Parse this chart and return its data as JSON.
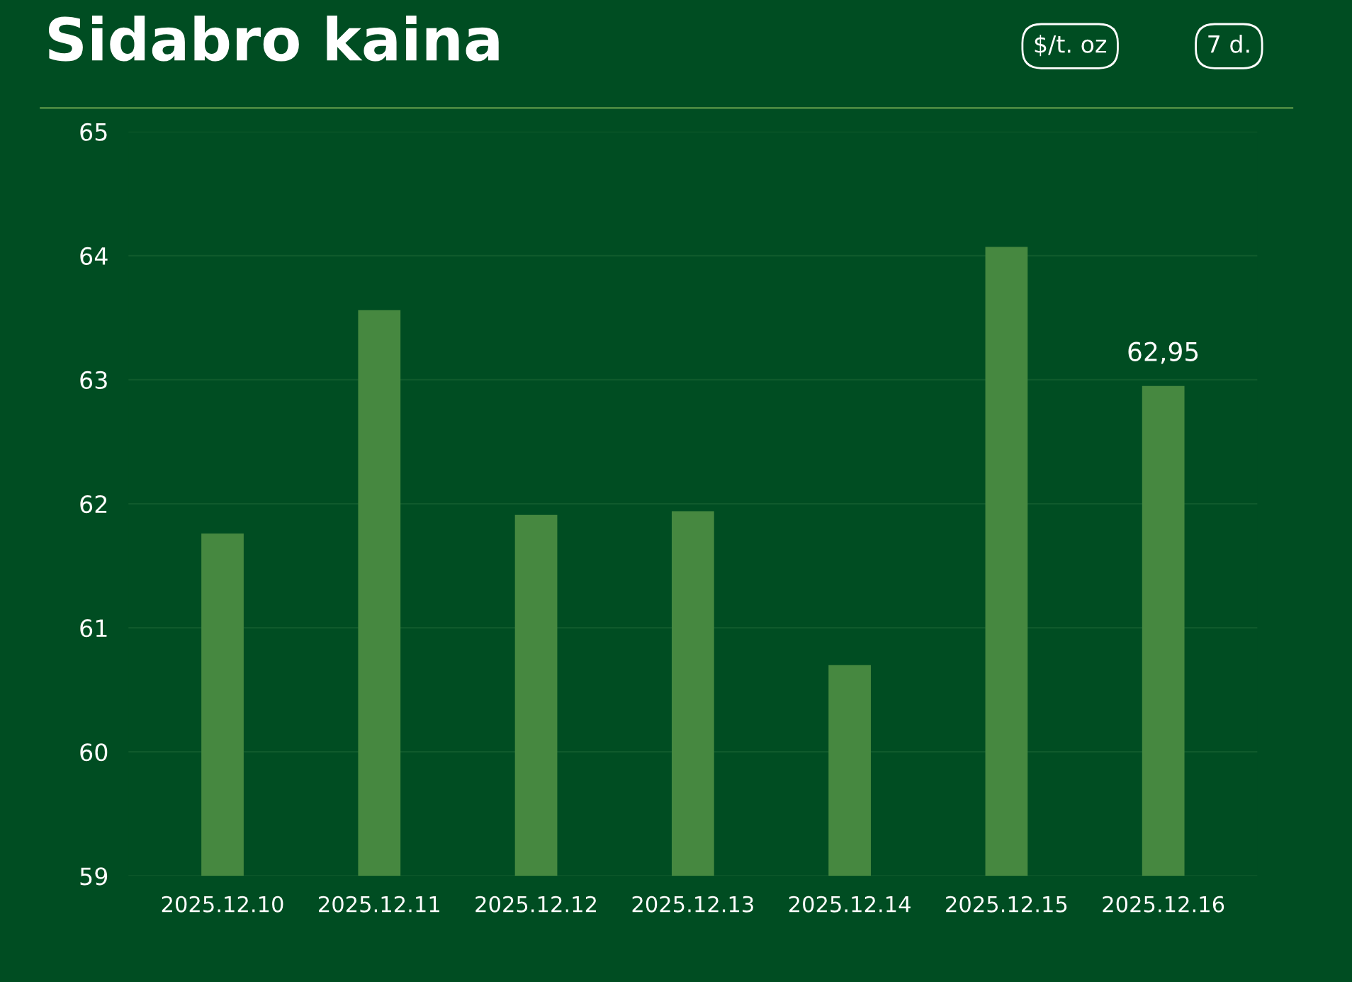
{
  "chart_data": {
    "type": "bar",
    "title": "Sidabro kaina",
    "annotations": [
      "$/t. oz",
      "7 d."
    ],
    "categories": [
      "2025.12.10",
      "2025.12.11",
      "2025.12.12",
      "2025.12.13",
      "2025.12.14",
      "2025.12.15",
      "2025.12.16"
    ],
    "values": [
      61.76,
      63.56,
      61.91,
      61.94,
      60.7,
      64.07,
      62.95
    ],
    "value_labels": [
      null,
      null,
      null,
      null,
      null,
      null,
      "62,95"
    ],
    "color": "#468840",
    "ylim": [
      59,
      65
    ],
    "yticks": [
      59,
      60,
      61,
      62,
      63,
      64,
      65
    ],
    "grid": "y"
  }
}
